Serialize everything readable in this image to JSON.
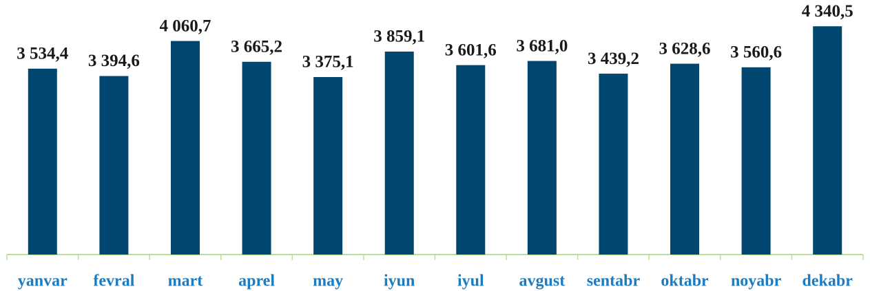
{
  "chart_data": {
    "type": "bar",
    "categories": [
      "yanvar",
      "fevral",
      "mart",
      "aprel",
      "may",
      "iyun",
      "iyul",
      "avgust",
      "sentabr",
      "oktabr",
      "noyabr",
      "dekabr"
    ],
    "values": [
      3534.4,
      3394.6,
      4060.7,
      3665.2,
      3375.1,
      3859.1,
      3601.6,
      3681.0,
      3439.2,
      3628.6,
      3560.6,
      4340.5
    ],
    "value_labels": [
      "3 534,4",
      "3 394,6",
      "4 060,7",
      "3 665,2",
      "3 375,1",
      "3 859,1",
      "3 601,6",
      "3 681,0",
      "3 439,2",
      "3 628,6",
      "3 560,6",
      "4 340,5"
    ],
    "color": "#00466e",
    "ylim": [
      0,
      4500
    ]
  }
}
